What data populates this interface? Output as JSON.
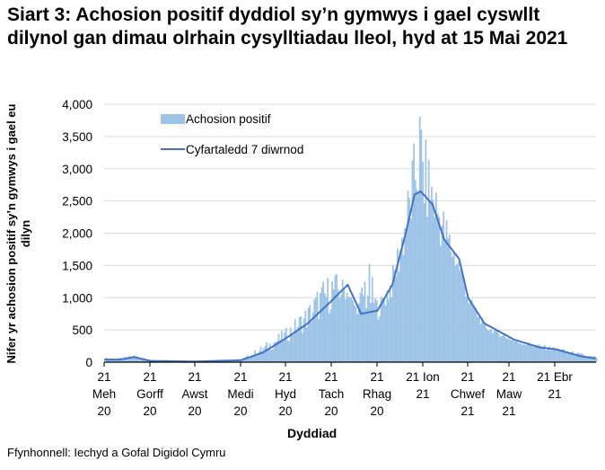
{
  "title": "Siart 3: Achosion positif dyddiol sy’n gymwys i gael cyswllt dilynol gan dimau olrhain cysylltiadau lleol, hyd at 15 Mai 2021",
  "source": "Ffynhonnell: Iechyd a Gofal Digidol Cymru",
  "colors": {
    "bars": "#9dc3e6",
    "line": "#4472c4",
    "grid": "#d9d9d9"
  },
  "chart_data": {
    "type": "bar",
    "title": "Siart 3: Achosion positif dyddiol sy’n gymwys i gael cyswllt dilynol gan dimau olrhain cysylltiadau lleol, hyd at 15 Mai 2021",
    "xlabel": "Dyddiad",
    "ylabel": "Nifer yr achosion positif sy’n gymwys i gael eu dilyn",
    "ylim": [
      0,
      4000
    ],
    "yticks": [
      "0",
      "500",
      "1,000",
      "1,500",
      "2,000",
      "2,500",
      "3,000",
      "3,500",
      "4,000"
    ],
    "xticks": [
      [
        "21",
        "Meh",
        "20"
      ],
      [
        "21",
        "Gorff",
        "20"
      ],
      [
        "21",
        "Awst",
        "20"
      ],
      [
        "21",
        "Medi",
        "20"
      ],
      [
        "21",
        "Hyd",
        "20"
      ],
      [
        "21",
        "Tach",
        "20"
      ],
      [
        "21",
        "Rhag",
        "20"
      ],
      [
        "21 Ion",
        "21"
      ],
      [
        "21",
        "Chwef",
        "21"
      ],
      [
        "21",
        "Maw",
        "21"
      ],
      [
        "21 Ebr",
        "21"
      ]
    ],
    "grid": true,
    "legend": {
      "position": "top-left inside",
      "entries": [
        "Achosion positif",
        "Cyfartaledd 7 diwrnod"
      ]
    },
    "series": [
      {
        "name": "Achosion positif",
        "kind": "bar",
        "approx_points": [
          [
            "2020-06-01",
            60
          ],
          [
            "2020-06-10",
            100
          ],
          [
            "2020-06-21",
            30
          ],
          [
            "2020-07-21",
            15
          ],
          [
            "2020-08-21",
            40
          ],
          [
            "2020-09-05",
            250
          ],
          [
            "2020-09-21",
            480
          ],
          [
            "2020-10-05",
            800
          ],
          [
            "2020-10-12",
            1050
          ],
          [
            "2020-10-21",
            1250
          ],
          [
            "2020-10-28",
            1120
          ],
          [
            "2020-11-07",
            700
          ],
          [
            "2020-11-13",
            1550
          ],
          [
            "2020-11-21",
            780
          ],
          [
            "2020-12-01",
            1300
          ],
          [
            "2020-12-11",
            2400
          ],
          [
            "2020-12-15",
            2950
          ],
          [
            "2020-12-18",
            3800
          ],
          [
            "2020-12-22",
            3050
          ],
          [
            "2020-12-28",
            2600
          ],
          [
            "2021-01-05",
            2050
          ],
          [
            "2021-01-12",
            1550
          ],
          [
            "2021-01-21",
            900
          ],
          [
            "2021-02-01",
            500
          ],
          [
            "2021-02-21",
            300
          ],
          [
            "2021-03-21",
            200
          ],
          [
            "2021-04-07",
            120
          ],
          [
            "2021-04-21",
            60
          ],
          [
            "2021-05-15",
            50
          ]
        ]
      },
      {
        "name": "Cyfartaledd 7 diwrnod",
        "kind": "line",
        "approx_points": [
          [
            "2020-06-01",
            40
          ],
          [
            "2020-06-10",
            80
          ],
          [
            "2020-06-21",
            20
          ],
          [
            "2020-07-21",
            10
          ],
          [
            "2020-08-21",
            30
          ],
          [
            "2020-09-05",
            150
          ],
          [
            "2020-09-21",
            380
          ],
          [
            "2020-10-05",
            600
          ],
          [
            "2020-10-21",
            950
          ],
          [
            "2020-11-01",
            1200
          ],
          [
            "2020-11-10",
            750
          ],
          [
            "2020-11-21",
            800
          ],
          [
            "2020-12-01",
            1200
          ],
          [
            "2020-12-10",
            2000
          ],
          [
            "2020-12-16",
            2600
          ],
          [
            "2020-12-20",
            2650
          ],
          [
            "2020-12-28",
            2450
          ],
          [
            "2021-01-05",
            1900
          ],
          [
            "2021-01-15",
            1600
          ],
          [
            "2021-01-21",
            1000
          ],
          [
            "2021-02-01",
            600
          ],
          [
            "2021-02-21",
            350
          ],
          [
            "2021-03-10",
            230
          ],
          [
            "2021-03-21",
            200
          ],
          [
            "2021-04-07",
            90
          ],
          [
            "2021-04-21",
            45
          ],
          [
            "2021-05-15",
            40
          ]
        ]
      }
    ]
  }
}
